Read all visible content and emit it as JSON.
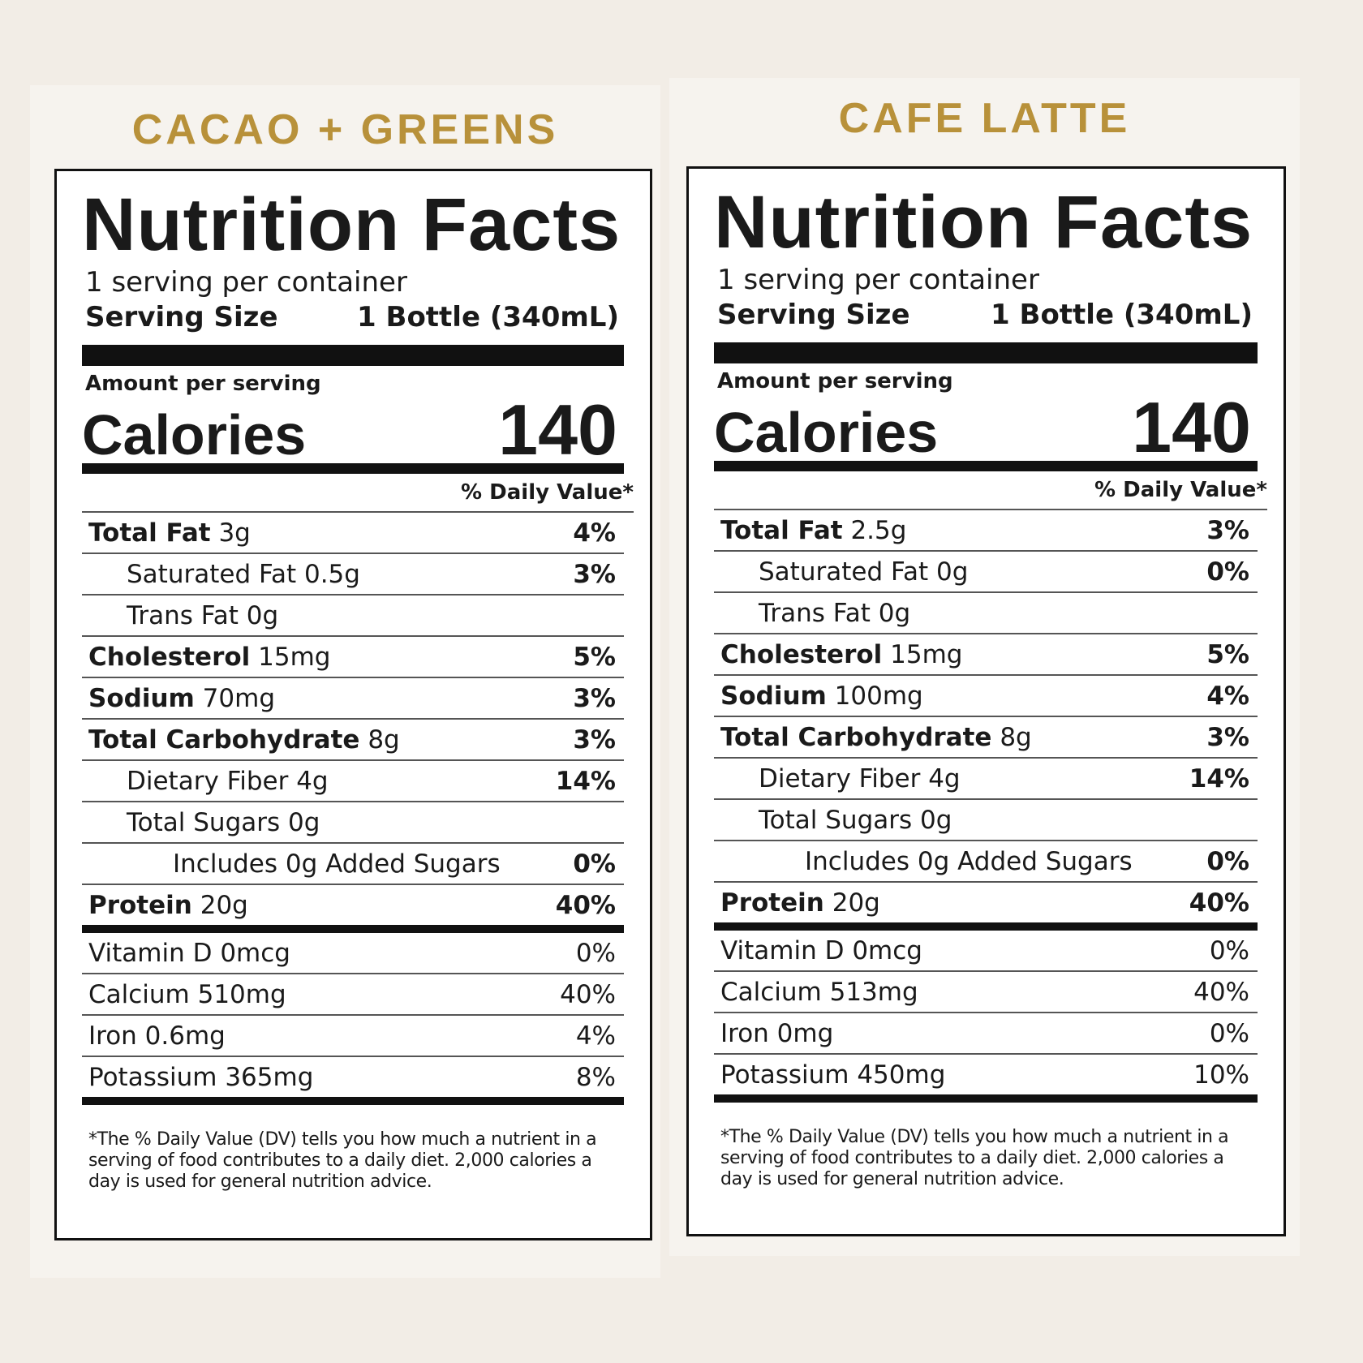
{
  "panels": [
    {
      "title": "CACAO + GREENS",
      "label": {
        "heading": "Nutrition Facts",
        "servings": "1 serving per container",
        "serving_size_label": "Serving Size",
        "serving_size_value": "1 Bottle (340mL)",
        "amount_label": "Amount per serving",
        "calories_label": "Calories",
        "calories_value": "140",
        "dv_header": "% Daily Value*",
        "nutrients": [
          {
            "name": "Total Fat",
            "amount": "3g",
            "dv": "4%",
            "sub": [
              {
                "text": "Saturated Fat 0.5g",
                "dv": "3%"
              },
              {
                "text": "Trans Fat 0g"
              }
            ]
          },
          {
            "name": "Cholesterol",
            "amount": "15mg",
            "dv": "5%"
          },
          {
            "name": "Sodium",
            "amount": "70mg",
            "dv": "3%"
          },
          {
            "name": "Total Carbohydrate",
            "amount": "8g",
            "dv": "3%",
            "sub": [
              {
                "text": "Dietary Fiber 4g",
                "dv": "14%"
              },
              {
                "text": "Total Sugars 0g",
                "sub": [
                  {
                    "text": "Includes 0g Added Sugars",
                    "dv": "0%"
                  }
                ]
              }
            ]
          },
          {
            "name": "Protein",
            "amount": "20g",
            "dv": "40%"
          }
        ],
        "vitamins": [
          {
            "text": "Vitamin D 0mcg",
            "dv": "0%"
          },
          {
            "text": "Calcium 510mg",
            "dv": "40%"
          },
          {
            "text": "Iron 0.6mg",
            "dv": "4%"
          },
          {
            "text": "Potassium 365mg",
            "dv": "8%"
          }
        ],
        "footnote": "*The % Daily Value (DV) tells you how much a nutrient in a serving of food contributes to a daily diet. 2,000 calories a day is used for general nutrition advice."
      }
    },
    {
      "title": "CAFE LATTE",
      "label": {
        "heading": "Nutrition Facts",
        "servings": "1 serving per container",
        "serving_size_label": "Serving Size",
        "serving_size_value": "1 Bottle (340mL)",
        "amount_label": "Amount per serving",
        "calories_label": "Calories",
        "calories_value": "140",
        "dv_header": "% Daily Value*",
        "nutrients": [
          {
            "name": "Total Fat",
            "amount": "2.5g",
            "dv": "3%",
            "sub": [
              {
                "text": "Saturated Fat 0g",
                "dv": "0%"
              },
              {
                "text": "Trans Fat 0g"
              }
            ]
          },
          {
            "name": "Cholesterol",
            "amount": "15mg",
            "dv": "5%"
          },
          {
            "name": "Sodium",
            "amount": "100mg",
            "dv": "4%"
          },
          {
            "name": "Total Carbohydrate",
            "amount": "8g",
            "dv": "3%",
            "sub": [
              {
                "text": "Dietary Fiber 4g",
                "dv": "14%"
              },
              {
                "text": "Total Sugars 0g",
                "sub": [
                  {
                    "text": "Includes 0g Added Sugars",
                    "dv": "0%"
                  }
                ]
              }
            ]
          },
          {
            "name": "Protein",
            "amount": "20g",
            "dv": "40%"
          }
        ],
        "vitamins": [
          {
            "text": "Vitamin D 0mcg",
            "dv": "0%"
          },
          {
            "text": "Calcium 513mg",
            "dv": "40%"
          },
          {
            "text": "Iron 0mg",
            "dv": "0%"
          },
          {
            "text": "Potassium 450mg",
            "dv": "10%"
          }
        ],
        "footnote": "*The % Daily Value (DV) tells you how much a nutrient in a serving of food contributes to a daily diet. 2,000 calories a day is used for general nutrition advice."
      }
    }
  ]
}
